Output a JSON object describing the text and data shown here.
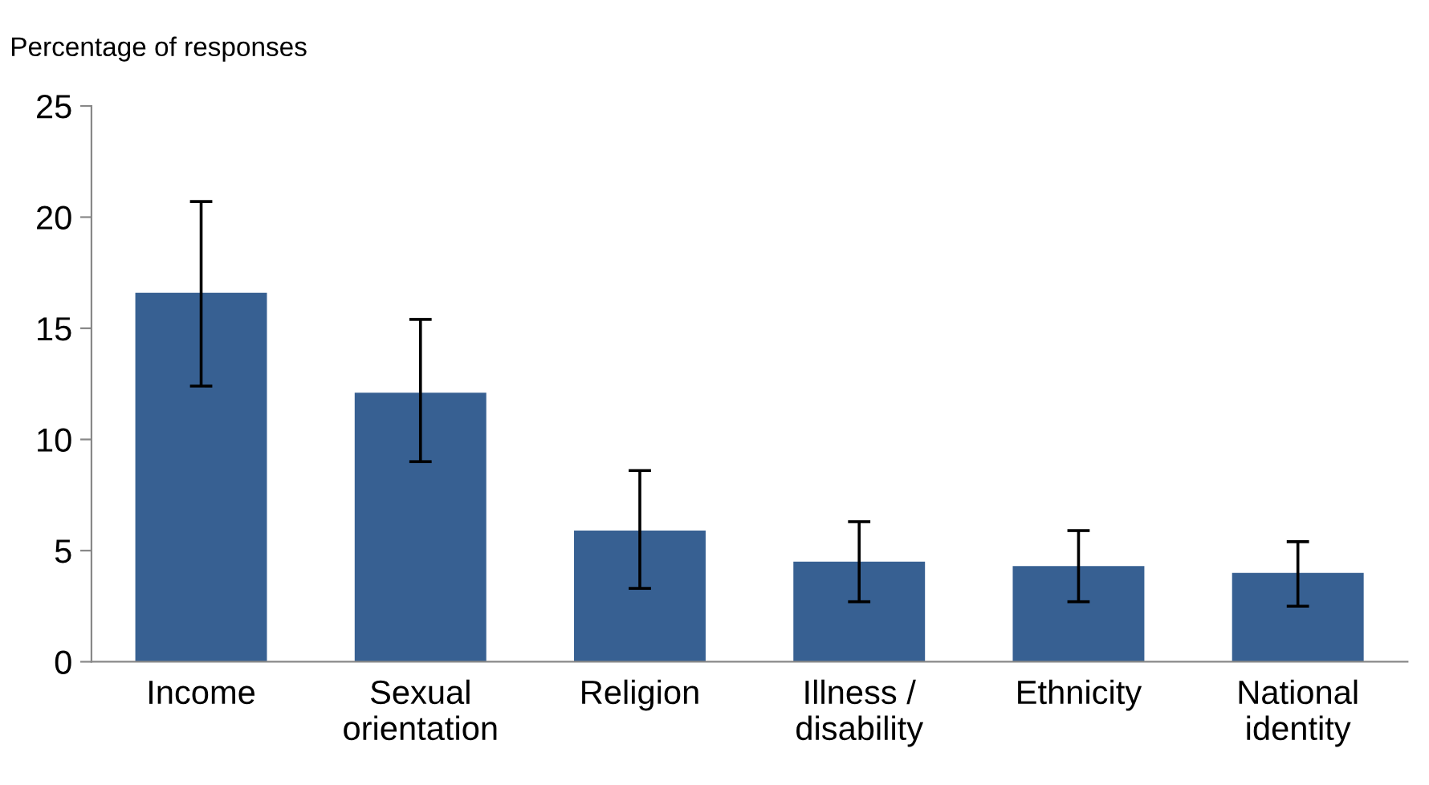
{
  "chart_data": {
    "type": "bar",
    "ylabel": "Percentage of responses",
    "categories": [
      "Income",
      "Sexual\norientation",
      "Religion",
      "Illness /\ndisability",
      "Ethnicity",
      "National\nidentity"
    ],
    "values": [
      16.6,
      12.1,
      5.9,
      4.5,
      4.3,
      4.0
    ],
    "errors": [
      [
        12.4,
        20.7
      ],
      [
        9.0,
        15.4
      ],
      [
        3.3,
        8.6
      ],
      [
        2.7,
        6.3
      ],
      [
        2.7,
        5.9
      ],
      [
        2.5,
        5.4
      ]
    ],
    "color": "#376092",
    "ylim": [
      0,
      25
    ],
    "yticks": [
      0,
      5,
      10,
      15,
      20,
      25
    ],
    "grid": false
  }
}
